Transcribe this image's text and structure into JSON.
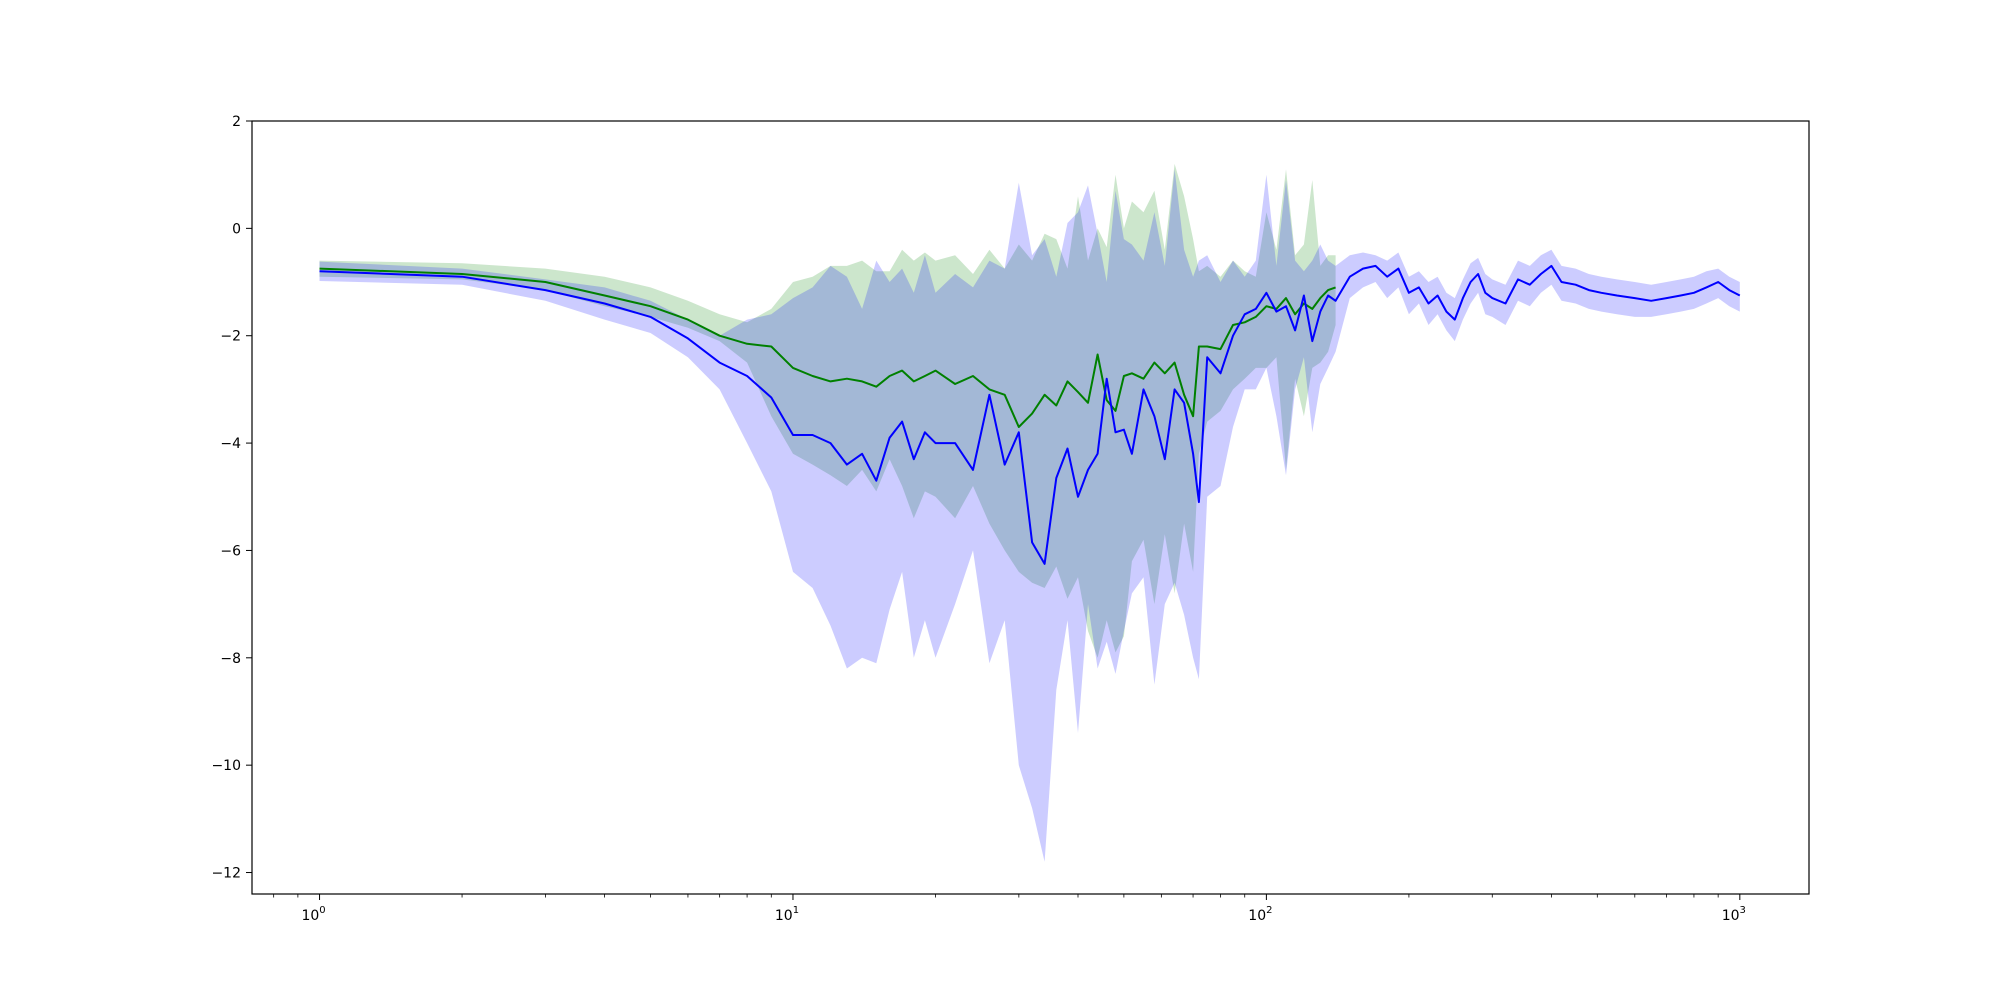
{
  "chart_data": {
    "type": "line",
    "title": "",
    "xlabel": "",
    "ylabel": "",
    "xscale": "log",
    "xlim": [
      0.72,
      1400
    ],
    "ylim": [
      -12.4,
      2
    ],
    "grid": false,
    "legend": "none",
    "x_ticks": [
      {
        "value": 1,
        "base": "10",
        "exp": "0"
      },
      {
        "value": 10,
        "base": "10",
        "exp": "1"
      },
      {
        "value": 100,
        "base": "10",
        "exp": "2"
      },
      {
        "value": 1000,
        "base": "10",
        "exp": "3"
      }
    ],
    "y_ticks": [
      {
        "value": 2,
        "label": "2"
      },
      {
        "value": 0,
        "label": "0"
      },
      {
        "value": -2,
        "label": "−2"
      },
      {
        "value": -4,
        "label": "−4"
      },
      {
        "value": -6,
        "label": "−6"
      },
      {
        "value": -8,
        "label": "−8"
      },
      {
        "value": -10,
        "label": "−10"
      },
      {
        "value": -12,
        "label": "−12"
      }
    ],
    "colors": {
      "green_line": "#008000",
      "green_band": "#008000",
      "blue_line": "#0000ff",
      "blue_band": "#0000ff"
    },
    "series": [
      {
        "color": "green",
        "x": [
          1,
          2,
          3,
          4,
          5,
          6,
          7,
          8,
          9,
          10,
          11,
          12,
          13,
          14,
          15,
          16,
          17,
          18,
          19,
          20,
          22,
          24,
          26,
          28,
          30,
          32,
          34,
          36,
          38,
          40,
          42,
          44,
          46,
          48,
          50,
          52,
          55,
          58,
          61,
          64,
          67,
          70,
          72,
          75,
          80,
          85,
          90,
          95,
          100,
          105,
          110,
          115,
          120,
          125,
          130,
          135,
          140
        ],
        "y": [
          -0.75,
          -0.85,
          -1.0,
          -1.25,
          -1.45,
          -1.7,
          -2.0,
          -2.15,
          -2.2,
          -2.6,
          -2.75,
          -2.85,
          -2.8,
          -2.85,
          -2.95,
          -2.75,
          -2.65,
          -2.85,
          -2.75,
          -2.65,
          -2.9,
          -2.75,
          -3.0,
          -3.1,
          -3.7,
          -3.45,
          -3.1,
          -3.3,
          -2.85,
          -3.05,
          -3.25,
          -2.35,
          -3.2,
          -3.4,
          -2.75,
          -2.7,
          -2.8,
          -2.5,
          -2.7,
          -2.5,
          -3.1,
          -3.5,
          -2.2,
          -2.2,
          -2.25,
          -1.8,
          -1.75,
          -1.65,
          -1.45,
          -1.5,
          -1.3,
          -1.6,
          -1.4,
          -1.5,
          -1.3,
          -1.15,
          -1.1
        ],
        "lower": [
          -0.9,
          -0.95,
          -1.15,
          -1.45,
          -1.65,
          -1.85,
          -2.1,
          -2.5,
          -3.5,
          -4.2,
          -4.4,
          -4.6,
          -4.8,
          -4.5,
          -4.9,
          -4.3,
          -4.8,
          -5.4,
          -4.9,
          -5.0,
          -5.4,
          -4.8,
          -5.5,
          -6.0,
          -6.4,
          -6.6,
          -6.7,
          -6.3,
          -6.9,
          -6.5,
          -7.5,
          -8.0,
          -7.3,
          -7.9,
          -7.6,
          -6.2,
          -5.8,
          -7.0,
          -5.7,
          -6.8,
          -5.5,
          -6.4,
          -4.2,
          -3.6,
          -3.4,
          -3.0,
          -2.8,
          -2.6,
          -2.6,
          -2.4,
          -4.5,
          -2.8,
          -3.5,
          -2.6,
          -2.5,
          -2.3,
          -1.8
        ],
        "upper": [
          -0.6,
          -0.65,
          -0.75,
          -0.9,
          -1.1,
          -1.35,
          -1.6,
          -1.75,
          -1.5,
          -1.0,
          -0.9,
          -0.7,
          -0.7,
          -0.6,
          -0.8,
          -0.8,
          -0.4,
          -0.6,
          -0.45,
          -0.6,
          -0.5,
          -0.85,
          -0.4,
          -0.75,
          -0.3,
          -0.6,
          -0.1,
          -0.2,
          -0.75,
          0.6,
          -0.6,
          0.0,
          -0.35,
          1.0,
          0.0,
          0.5,
          0.3,
          0.7,
          -0.4,
          1.2,
          0.6,
          -0.2,
          -0.8,
          -0.7,
          -0.9,
          -0.6,
          -0.8,
          -0.9,
          0.3,
          -0.4,
          1.1,
          -0.5,
          -0.3,
          0.9,
          -0.7,
          -0.5,
          -0.5
        ]
      },
      {
        "color": "blue",
        "x": [
          1,
          2,
          3,
          4,
          5,
          6,
          7,
          8,
          9,
          10,
          11,
          12,
          13,
          14,
          15,
          16,
          17,
          18,
          19,
          20,
          22,
          24,
          26,
          28,
          30,
          32,
          34,
          36,
          38,
          40,
          42,
          44,
          46,
          48,
          50,
          52,
          55,
          58,
          61,
          64,
          67,
          70,
          72,
          75,
          80,
          85,
          90,
          95,
          100,
          105,
          110,
          115,
          120,
          125,
          130,
          135,
          140,
          150,
          160,
          170,
          180,
          190,
          200,
          210,
          220,
          230,
          240,
          250,
          260,
          270,
          280,
          290,
          300,
          320,
          340,
          360,
          380,
          400,
          420,
          450,
          480,
          510,
          550,
          600,
          650,
          700,
          750,
          800,
          850,
          900,
          950,
          1000
        ],
        "y": [
          -0.8,
          -0.9,
          -1.15,
          -1.4,
          -1.65,
          -2.05,
          -2.5,
          -2.75,
          -3.15,
          -3.85,
          -3.85,
          -4.0,
          -4.4,
          -4.2,
          -4.7,
          -3.9,
          -3.6,
          -4.3,
          -3.8,
          -4.0,
          -4.0,
          -4.5,
          -3.1,
          -4.4,
          -3.8,
          -5.85,
          -6.25,
          -4.65,
          -4.1,
          -5.0,
          -4.5,
          -4.2,
          -2.8,
          -3.8,
          -3.75,
          -4.2,
          -3.0,
          -3.5,
          -4.3,
          -3.0,
          -3.25,
          -4.2,
          -5.1,
          -2.4,
          -2.7,
          -2.0,
          -1.6,
          -1.5,
          -1.2,
          -1.55,
          -1.45,
          -1.9,
          -1.25,
          -2.1,
          -1.55,
          -1.25,
          -1.35,
          -0.9,
          -0.75,
          -0.7,
          -0.9,
          -0.75,
          -1.2,
          -1.1,
          -1.4,
          -1.25,
          -1.55,
          -1.7,
          -1.3,
          -1.0,
          -0.85,
          -1.2,
          -1.3,
          -1.4,
          -0.95,
          -1.05,
          -0.85,
          -0.7,
          -1.0,
          -1.05,
          -1.15,
          -1.2,
          -1.25,
          -1.3,
          -1.35,
          -1.3,
          -1.25,
          -1.2,
          -1.1,
          -1.0,
          -1.15,
          -1.25
        ],
        "lower": [
          -0.98,
          -1.05,
          -1.35,
          -1.7,
          -1.95,
          -2.4,
          -3.0,
          -4.0,
          -4.9,
          -6.4,
          -6.7,
          -7.4,
          -8.2,
          -8.0,
          -8.1,
          -7.1,
          -6.4,
          -8.0,
          -7.3,
          -8.0,
          -7.0,
          -6.0,
          -8.1,
          -7.3,
          -10.0,
          -10.8,
          -11.8,
          -8.6,
          -7.3,
          -9.4,
          -7.0,
          -8.2,
          -7.7,
          -8.3,
          -7.5,
          -6.8,
          -6.5,
          -8.5,
          -7.0,
          -6.6,
          -7.2,
          -8.0,
          -8.4,
          -5.0,
          -4.8,
          -3.7,
          -3.0,
          -3.0,
          -2.6,
          -3.5,
          -4.6,
          -3.0,
          -2.4,
          -3.8,
          -2.9,
          -2.6,
          -2.3,
          -1.3,
          -1.1,
          -1.0,
          -1.3,
          -1.1,
          -1.6,
          -1.4,
          -1.8,
          -1.6,
          -1.9,
          -2.1,
          -1.7,
          -1.4,
          -1.2,
          -1.6,
          -1.65,
          -1.8,
          -1.35,
          -1.45,
          -1.2,
          -1.05,
          -1.35,
          -1.4,
          -1.5,
          -1.55,
          -1.6,
          -1.65,
          -1.65,
          -1.6,
          -1.55,
          -1.5,
          -1.4,
          -1.3,
          -1.45,
          -1.55
        ],
        "upper": [
          -0.62,
          -0.75,
          -0.95,
          -1.1,
          -1.35,
          -1.7,
          -2.0,
          -1.7,
          -1.6,
          -1.3,
          -1.1,
          -0.7,
          -0.9,
          -1.5,
          -0.6,
          -1.0,
          -0.75,
          -1.2,
          -0.5,
          -1.2,
          -0.85,
          -1.1,
          -0.6,
          -0.75,
          0.85,
          -0.5,
          -0.2,
          -0.9,
          0.1,
          0.3,
          0.8,
          -0.1,
          -1.0,
          0.7,
          -0.2,
          -0.3,
          -0.6,
          0.3,
          -0.7,
          1.1,
          -0.4,
          -0.9,
          -0.6,
          -0.5,
          -1.0,
          -0.6,
          -0.9,
          -0.6,
          1.0,
          -0.7,
          0.9,
          -0.6,
          -0.8,
          -0.6,
          -0.3,
          -0.6,
          -0.7,
          -0.5,
          -0.45,
          -0.5,
          -0.6,
          -0.45,
          -0.9,
          -0.8,
          -1.0,
          -0.9,
          -1.2,
          -1.3,
          -0.95,
          -0.65,
          -0.55,
          -0.85,
          -0.95,
          -1.05,
          -0.6,
          -0.7,
          -0.5,
          -0.4,
          -0.7,
          -0.75,
          -0.85,
          -0.9,
          -0.95,
          -1.0,
          -1.05,
          -1.0,
          -0.95,
          -0.9,
          -0.8,
          -0.75,
          -0.9,
          -1.0
        ]
      }
    ]
  }
}
